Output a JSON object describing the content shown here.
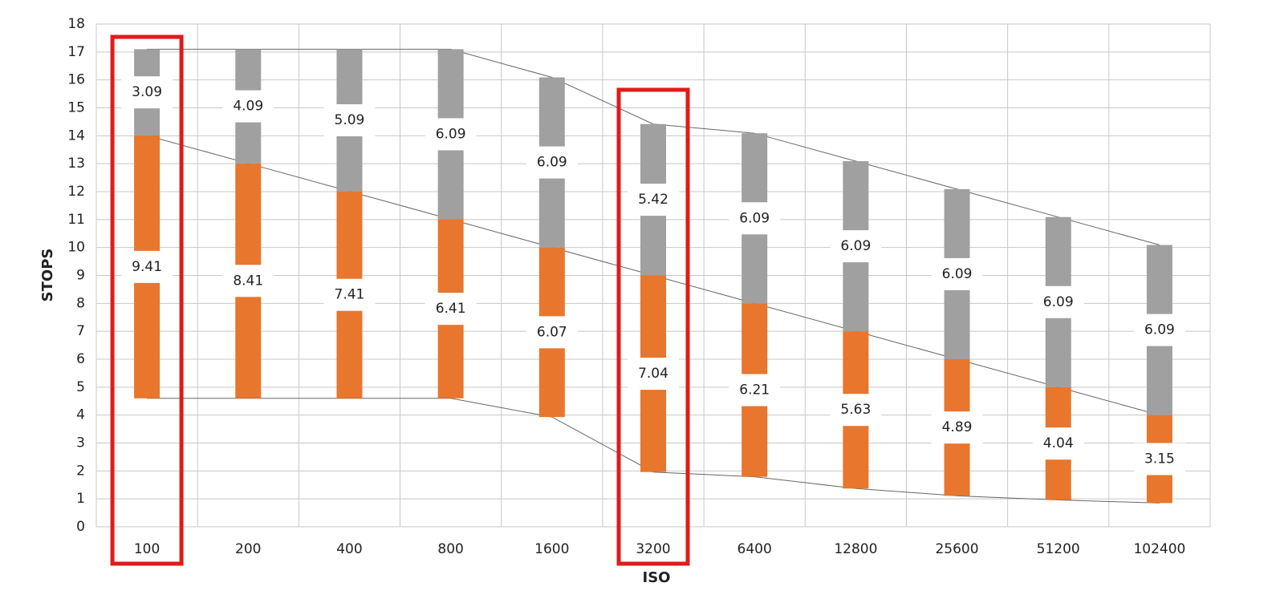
{
  "chart_data": {
    "type": "floating-stacked-bar",
    "x_label": "ISO",
    "y_label": "STOPS",
    "categories": [
      "100",
      "200",
      "400",
      "800",
      "1600",
      "3200",
      "6400",
      "12800",
      "25600",
      "51200",
      "102400"
    ],
    "base": [
      4.6,
      4.6,
      4.6,
      4.6,
      3.93,
      1.96,
      1.79,
      1.37,
      1.11,
      0.96,
      0.85
    ],
    "series": [
      {
        "color": "#e8762d",
        "values": [
          9.41,
          8.41,
          7.41,
          6.41,
          6.07,
          7.04,
          6.21,
          5.63,
          4.89,
          4.04,
          3.15
        ]
      },
      {
        "color": "#a0a0a0",
        "values": [
          3.09,
          4.09,
          5.09,
          6.09,
          6.09,
          5.42,
          6.09,
          6.09,
          6.09,
          6.09,
          6.09
        ]
      }
    ],
    "ylim": [
      0,
      18
    ],
    "yticks": [
      0,
      1,
      2,
      3,
      4,
      5,
      6,
      7,
      8,
      9,
      10,
      11,
      12,
      13,
      14,
      15,
      16,
      17,
      18
    ],
    "grid": true,
    "highlight": [
      0,
      5
    ],
    "highlight_color": "#e01b1b"
  }
}
